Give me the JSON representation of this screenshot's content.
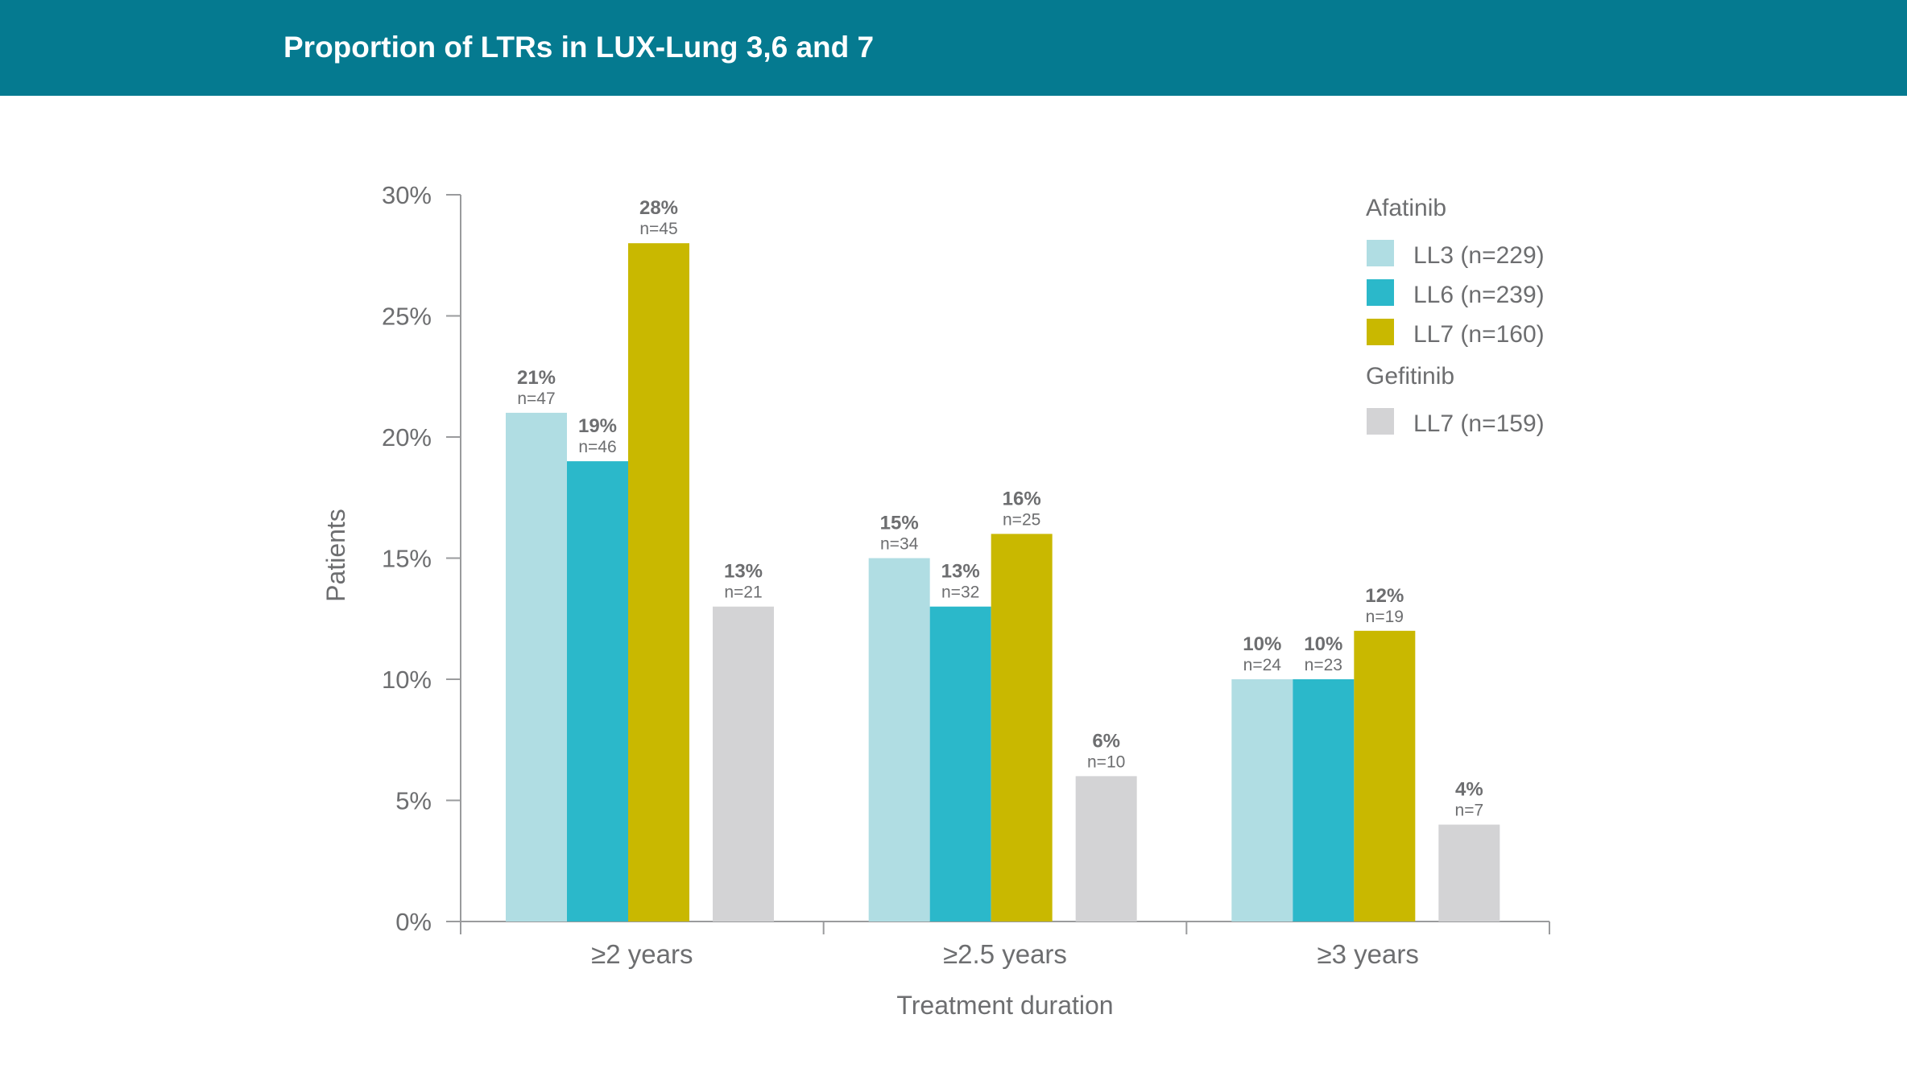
{
  "header": {
    "title": "Proportion of LTRs in LUX-Lung 3,6 and 7"
  },
  "chart_data": {
    "type": "bar",
    "title": "Proportion of LTRs in LUX-Lung 3,6 and 7",
    "xlabel": "Treatment duration",
    "ylabel": "Patients",
    "ylim": [
      0,
      30
    ],
    "yticks": [
      "0%",
      "5%",
      "10%",
      "15%",
      "20%",
      "25%",
      "30%"
    ],
    "ytick_values": [
      0,
      5,
      10,
      15,
      20,
      25,
      30
    ],
    "grid": false,
    "legend_position": "top-right",
    "categories": [
      "≥2 years",
      "≥2.5 years",
      "≥3 years"
    ],
    "legend_groups": [
      {
        "title": "Afatinib",
        "entries": [
          "LL3 (n=229)",
          "LL6 (n=239)",
          "LL7 (n=160)"
        ]
      },
      {
        "title": "Gefitinib",
        "entries": [
          "LL7 (n=159)"
        ]
      }
    ],
    "series": [
      {
        "name": "LL3 (n=229)",
        "group": "Afatinib",
        "color": "#b0dde3",
        "values": [
          21,
          15,
          10
        ],
        "labels": [
          "21%",
          "15%",
          "10%"
        ],
        "n": [
          "n=47",
          "n=34",
          "n=24"
        ]
      },
      {
        "name": "LL6 (n=239)",
        "group": "Afatinib",
        "color": "#2bb8ca",
        "values": [
          19,
          13,
          10
        ],
        "labels": [
          "19%",
          "13%",
          "10%"
        ],
        "n": [
          "n=46",
          "n=32",
          "n=23"
        ]
      },
      {
        "name": "LL7 (n=160)",
        "group": "Afatinib",
        "color": "#c9b800",
        "values": [
          28,
          16,
          12
        ],
        "labels": [
          "28%",
          "16%",
          "12%"
        ],
        "n": [
          "n=45",
          "n=25",
          "n=19"
        ]
      },
      {
        "name": "LL7 (n=159)",
        "group": "Gefitinib",
        "color": "#d3d3d5",
        "values": [
          13,
          6,
          4
        ],
        "labels": [
          "13%",
          "6%",
          "4%"
        ],
        "n": [
          "n=21",
          "n=10",
          "n=7"
        ]
      }
    ]
  }
}
